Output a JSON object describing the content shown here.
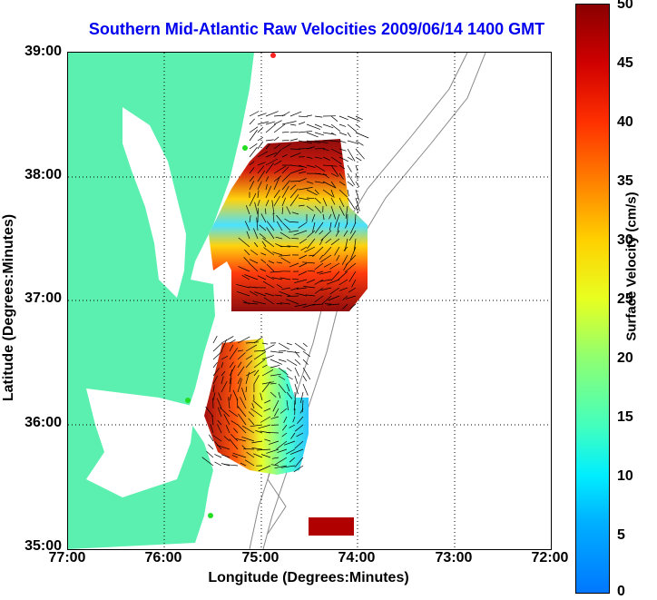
{
  "title": "Southern Mid-Atlantic Raw Velocities 2009/06/14 1400 GMT",
  "xlabel": "Longitude (Degrees:Minutes)",
  "ylabel": "Latitude (Degrees:Minutes)",
  "colorbar_label": "Surface Velocity (cm/s)",
  "x_ticks": [
    "77:00",
    "76:00",
    "75:00",
    "74:00",
    "73:00",
    "72:00"
  ],
  "y_ticks": [
    "39:00",
    "38:00",
    "37:00",
    "36:00",
    "35:00"
  ],
  "colorbar_ticks": [
    "50",
    "45",
    "40",
    "35",
    "30",
    "25",
    "20",
    "15",
    "10",
    "5",
    "0"
  ],
  "colors": {
    "land": "#5cf0b0",
    "title": "#0000ee",
    "contour": "#888888",
    "station": "#22dd22",
    "station_alt": "#ff2222"
  },
  "chart_data": {
    "type": "heatmap",
    "title": "Southern Mid-Atlantic Raw Velocities 2009/06/14 1400 GMT",
    "xlabel": "Longitude (Degrees:Minutes)",
    "ylabel": "Latitude (Degrees:Minutes)",
    "xlim": [
      -77.0,
      -72.0
    ],
    "ylim": [
      35.0,
      39.0
    ],
    "colorbar_range": [
      0,
      50
    ],
    "colorbar_units": "cm/s",
    "grid": true,
    "regions": [
      {
        "lon_range": [
          -75.6,
          -74.1
        ],
        "lat_range": [
          36.85,
          38.3
        ],
        "values": "high north/south edges (~40-50), low center (~10-15)"
      },
      {
        "lon_range": [
          -75.6,
          -74.5
        ],
        "lat_range": [
          35.6,
          36.6
        ],
        "values": "high west (~40-50), low east (~10-15)"
      },
      {
        "lon_range": [
          -74.4,
          -74.0
        ],
        "lat_range": [
          35.05,
          35.25
        ],
        "values": "~45-50"
      }
    ]
  }
}
